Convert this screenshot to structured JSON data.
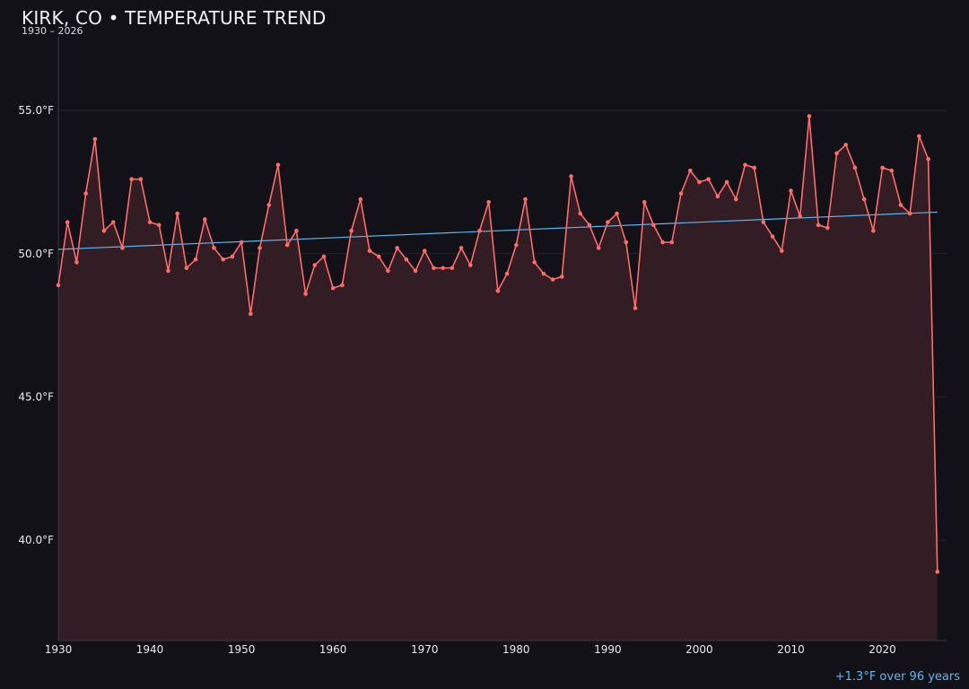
{
  "chart_data": {
    "type": "line",
    "title": "KIRK, CO • TEMPERATURE TREND",
    "subtitle": "1930 – 2026",
    "annotation": "+1.3°F over 96 years",
    "xlim": [
      1930,
      2027
    ],
    "ylim": [
      36.5,
      57.6
    ],
    "x_ticks": [
      1930,
      1940,
      1950,
      1960,
      1970,
      1980,
      1990,
      2000,
      2010,
      2020
    ],
    "x_tick_labels": [
      "1930",
      "1940",
      "1950",
      "1960",
      "1970",
      "1980",
      "1990",
      "2000",
      "2010",
      "2020"
    ],
    "y_ticks": [
      40,
      45,
      50,
      55
    ],
    "y_tick_labels": [
      "40.0°F",
      "45.0°F",
      "50.0°F",
      "55.0°F"
    ],
    "grid": "horizontal",
    "colors": {
      "background": "#121117",
      "line": "#ff6b6b",
      "fill": "#341e25",
      "trend": "#5bb8f0",
      "grid": "#2a2730",
      "axis": "#3a3740",
      "text": "#e9e9ee"
    },
    "series": [
      {
        "x": [
          1930,
          1931,
          1932,
          1933,
          1934,
          1935,
          1936,
          1937,
          1938,
          1939,
          1940,
          1941,
          1942,
          1943,
          1944,
          1945,
          1946,
          1947,
          1948,
          1949,
          1950,
          1951,
          1952,
          1953,
          1954,
          1955,
          1956,
          1957,
          1958,
          1959,
          1960,
          1961,
          1962,
          1963,
          1964,
          1965,
          1966,
          1967,
          1968,
          1969,
          1970,
          1971,
          1972,
          1973,
          1974,
          1975,
          1976,
          1977,
          1978,
          1979,
          1980,
          1981,
          1982,
          1983,
          1984,
          1985,
          1986,
          1987,
          1988,
          1989,
          1990,
          1991,
          1992,
          1993,
          1994,
          1995,
          1996,
          1997,
          1998,
          1999,
          2000,
          2001,
          2002,
          2003,
          2004,
          2005,
          2006,
          2007,
          2008,
          2009,
          2010,
          2011,
          2012,
          2013,
          2014,
          2015,
          2016,
          2017,
          2018,
          2019,
          2020,
          2021,
          2022,
          2023,
          2024,
          2025,
          2026
        ],
        "values": [
          48.9,
          51.1,
          49.7,
          52.1,
          54.0,
          50.8,
          51.1,
          50.2,
          52.6,
          52.6,
          51.1,
          51.0,
          49.4,
          51.4,
          49.5,
          49.8,
          51.2,
          50.2,
          49.8,
          49.9,
          50.4,
          47.9,
          50.2,
          51.7,
          53.1,
          50.3,
          50.8,
          48.6,
          49.6,
          49.9,
          48.8,
          48.9,
          50.8,
          51.9,
          50.1,
          49.9,
          49.4,
          50.2,
          49.8,
          49.4,
          50.1,
          49.5,
          49.5,
          49.5,
          50.2,
          49.6,
          50.8,
          51.8,
          48.7,
          49.3,
          50.3,
          51.9,
          49.7,
          49.3,
          49.1,
          49.2,
          52.7,
          51.4,
          51.0,
          50.2,
          51.1,
          51.4,
          50.4,
          48.1,
          51.8,
          51.0,
          50.4,
          50.4,
          52.1,
          52.9,
          52.5,
          52.6,
          52.0,
          52.5,
          51.9,
          53.1,
          53.0,
          51.1,
          50.6,
          50.1,
          52.2,
          51.3,
          54.8,
          51.0,
          50.9,
          53.5,
          53.8,
          53.0,
          51.9,
          50.8,
          53.0,
          52.9,
          51.7,
          51.4,
          54.1,
          53.3,
          38.9
        ]
      }
    ],
    "trend": {
      "x": [
        1930,
        2026
      ],
      "values": [
        50.15,
        51.45
      ]
    }
  }
}
